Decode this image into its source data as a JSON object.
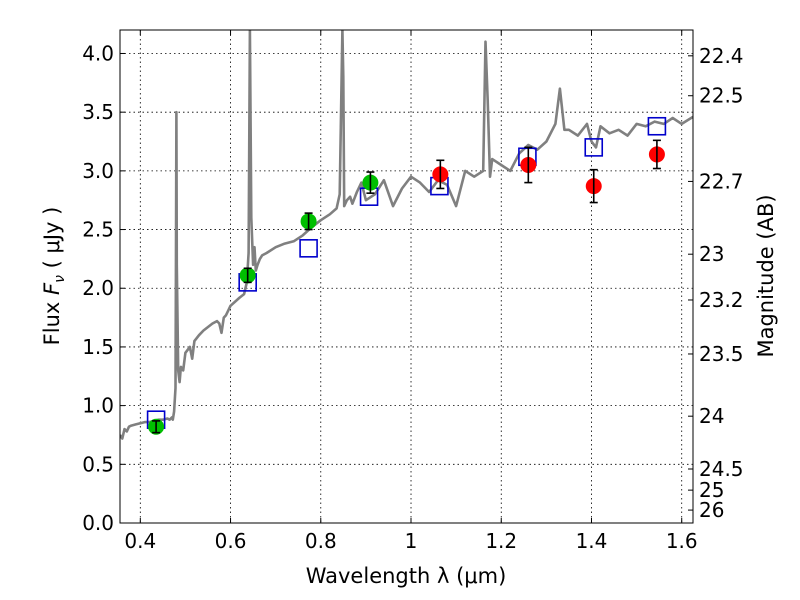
{
  "chart_data": {
    "type": "scatter",
    "xlabel": "Wavelength  λ (μm)",
    "ylabel": "Flux  F_ν  ( μJy )",
    "ylabel_parts": {
      "prefix": "Flux  ",
      "symbol": "F",
      "subscript": "ν",
      "unit": "  ( μJy )"
    },
    "y2label": "Magnitude (AB)",
    "xlim": [
      0.355,
      1.625
    ],
    "ylim": [
      0.0,
      4.2
    ],
    "grid": true,
    "legend": "none",
    "x_ticks": [
      {
        "value": 0.4,
        "label": "0.4"
      },
      {
        "value": 0.6,
        "label": "0.6"
      },
      {
        "value": 0.8,
        "label": "0.8"
      },
      {
        "value": 1.0,
        "label": "1"
      },
      {
        "value": 1.2,
        "label": "1.2"
      },
      {
        "value": 1.4,
        "label": "1.4"
      },
      {
        "value": 1.6,
        "label": "1.6"
      }
    ],
    "y_ticks": [
      {
        "value": 0.0,
        "label": "0.0"
      },
      {
        "value": 0.5,
        "label": "0.5"
      },
      {
        "value": 1.0,
        "label": "1.0"
      },
      {
        "value": 1.5,
        "label": "1.5"
      },
      {
        "value": 2.0,
        "label": "2.0"
      },
      {
        "value": 2.5,
        "label": "2.5"
      },
      {
        "value": 3.0,
        "label": "3.0"
      },
      {
        "value": 3.5,
        "label": "3.5"
      },
      {
        "value": 4.0,
        "label": "4.0"
      }
    ],
    "y2_ticks": [
      {
        "flux": 0.11,
        "label": "26"
      },
      {
        "flux": 0.28,
        "label": "25"
      },
      {
        "flux": 0.46,
        "label": "24.5"
      },
      {
        "flux": 0.91,
        "label": "24"
      },
      {
        "flux": 1.44,
        "label": "23.5"
      },
      {
        "flux": 1.9,
        "label": "23.2"
      },
      {
        "flux": 2.29,
        "label": "23"
      },
      {
        "flux": 2.91,
        "label": "22.7"
      },
      {
        "flux": 3.64,
        "label": "22.5"
      },
      {
        "flux": 3.98,
        "label": "22.4"
      }
    ],
    "colors": {
      "spectrum": "#808080",
      "green": "#00bf00",
      "red": "#ff0000",
      "model": "#0000cc",
      "errorbar": "#000000"
    },
    "series": [
      {
        "kind": "spectrum",
        "x": [
          0.355,
          0.36,
          0.365,
          0.37,
          0.375,
          0.38,
          0.39,
          0.4,
          0.41,
          0.42,
          0.43,
          0.44,
          0.45,
          0.46,
          0.465,
          0.47,
          0.472,
          0.475,
          0.478,
          0.479,
          0.48,
          0.481,
          0.484,
          0.487,
          0.49,
          0.495,
          0.5,
          0.51,
          0.515,
          0.52,
          0.53,
          0.54,
          0.55,
          0.56,
          0.57,
          0.575,
          0.58,
          0.585,
          0.59,
          0.6,
          0.62,
          0.63,
          0.636,
          0.64,
          0.643,
          0.646,
          0.65,
          0.653,
          0.656,
          0.66,
          0.665,
          0.67,
          0.68,
          0.7,
          0.72,
          0.74,
          0.76,
          0.78,
          0.8,
          0.82,
          0.835,
          0.842,
          0.848,
          0.85,
          0.852,
          0.858,
          0.865,
          0.87,
          0.88,
          0.89,
          0.9,
          0.92,
          0.94,
          0.96,
          0.98,
          1.0,
          1.02,
          1.04,
          1.06,
          1.08,
          1.1,
          1.12,
          1.14,
          1.16,
          1.165,
          1.17,
          1.175,
          1.18,
          1.2,
          1.22,
          1.24,
          1.26,
          1.28,
          1.3,
          1.32,
          1.33,
          1.34,
          1.35,
          1.37,
          1.39,
          1.4,
          1.41,
          1.42,
          1.44,
          1.46,
          1.48,
          1.5,
          1.52,
          1.54,
          1.56,
          1.58,
          1.6,
          1.625
        ],
        "y": [
          0.75,
          0.72,
          0.8,
          0.78,
          0.82,
          0.83,
          0.84,
          0.85,
          0.86,
          0.86,
          0.87,
          0.88,
          0.88,
          0.89,
          0.88,
          0.9,
          0.88,
          0.95,
          1.15,
          2.1,
          3.5,
          2.2,
          1.3,
          1.2,
          1.33,
          1.3,
          1.45,
          1.5,
          1.4,
          1.55,
          1.6,
          1.64,
          1.67,
          1.7,
          1.72,
          1.7,
          1.62,
          1.75,
          1.77,
          1.85,
          1.92,
          1.95,
          2.05,
          2.3,
          4.2,
          2.6,
          2.2,
          2.35,
          2.15,
          2.2,
          2.25,
          2.28,
          2.3,
          2.35,
          2.38,
          2.4,
          2.45,
          2.52,
          2.58,
          2.63,
          2.68,
          2.8,
          4.2,
          3.8,
          2.7,
          2.75,
          2.78,
          2.72,
          2.82,
          2.9,
          2.75,
          2.8,
          2.92,
          2.7,
          2.85,
          2.95,
          2.9,
          2.82,
          2.92,
          2.88,
          2.7,
          3.0,
          2.95,
          3.0,
          4.1,
          3.6,
          2.95,
          3.1,
          3.05,
          3.0,
          3.15,
          3.22,
          3.18,
          3.25,
          3.4,
          3.7,
          3.35,
          3.35,
          3.3,
          3.4,
          3.25,
          3.2,
          3.38,
          3.32,
          3.35,
          3.3,
          3.4,
          3.38,
          3.42,
          3.4,
          3.45,
          3.4,
          3.46
        ]
      },
      {
        "kind": "observed",
        "color": "green",
        "points": [
          {
            "x": 0.435,
            "y": 0.82,
            "err": 0.05
          },
          {
            "x": 0.638,
            "y": 2.11,
            "err": 0.06
          },
          {
            "x": 0.773,
            "y": 2.57,
            "err": 0.07
          },
          {
            "x": 0.91,
            "y": 2.9,
            "err": 0.09
          }
        ]
      },
      {
        "kind": "observed",
        "color": "red",
        "points": [
          {
            "x": 1.065,
            "y": 2.97,
            "err": 0.12
          },
          {
            "x": 1.26,
            "y": 3.05,
            "err": 0.15
          },
          {
            "x": 1.405,
            "y": 2.87,
            "err": 0.14
          },
          {
            "x": 1.545,
            "y": 3.14,
            "err": 0.12
          }
        ]
      },
      {
        "kind": "model",
        "color": "model",
        "points": [
          {
            "x": 0.435,
            "y": 0.88
          },
          {
            "x": 0.638,
            "y": 2.05
          },
          {
            "x": 0.773,
            "y": 2.34
          },
          {
            "x": 0.907,
            "y": 2.78
          },
          {
            "x": 1.063,
            "y": 2.87
          },
          {
            "x": 1.258,
            "y": 3.12
          },
          {
            "x": 1.405,
            "y": 3.2
          },
          {
            "x": 1.545,
            "y": 3.38
          }
        ]
      }
    ]
  }
}
